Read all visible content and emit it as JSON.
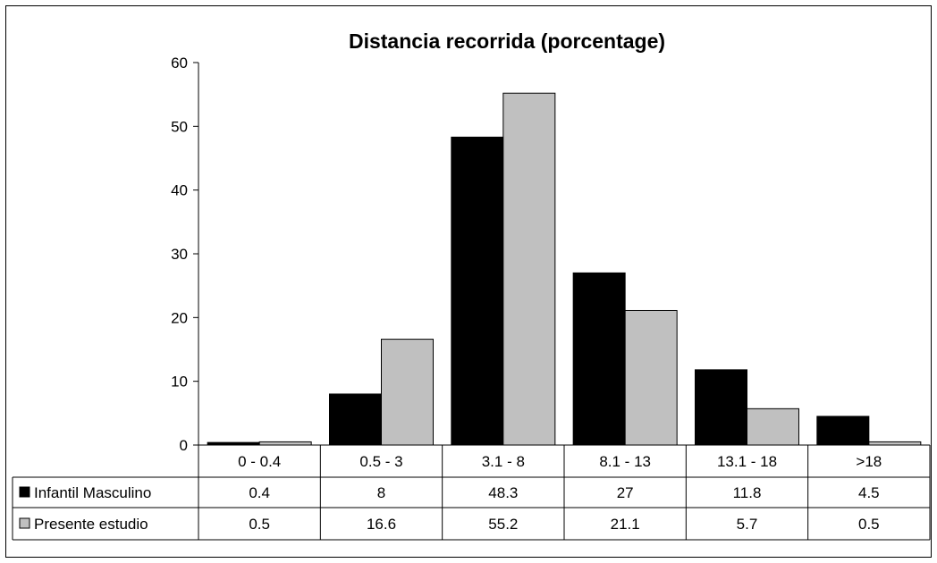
{
  "chart_data": {
    "type": "bar",
    "title": "Distancia recorrida (porcentage)",
    "xlabel": "",
    "ylabel": "",
    "ylim": [
      0,
      60
    ],
    "yticks": [
      0,
      10,
      20,
      30,
      40,
      50,
      60
    ],
    "categories": [
      "0 - 0.4",
      "0.5 - 3",
      "3.1 - 8",
      "8.1 - 13",
      "13.1 - 18",
      ">18"
    ],
    "series": [
      {
        "name": "Infantil Masculino",
        "color": "#000000",
        "values": [
          0.4,
          8,
          48.3,
          27,
          11.8,
          4.5
        ],
        "value_labels": [
          "0.4",
          "8",
          "48.3",
          "27",
          "11.8",
          "4.5"
        ]
      },
      {
        "name": "Presente estudio",
        "color": "#c0c0c0",
        "values": [
          0.5,
          16.6,
          55.2,
          21.1,
          5.7,
          0.5
        ],
        "value_labels": [
          "0.5",
          "16.6",
          "55.2",
          "21.1",
          "5.7",
          "0.5"
        ]
      }
    ],
    "legend": "data-table",
    "grid": false
  }
}
